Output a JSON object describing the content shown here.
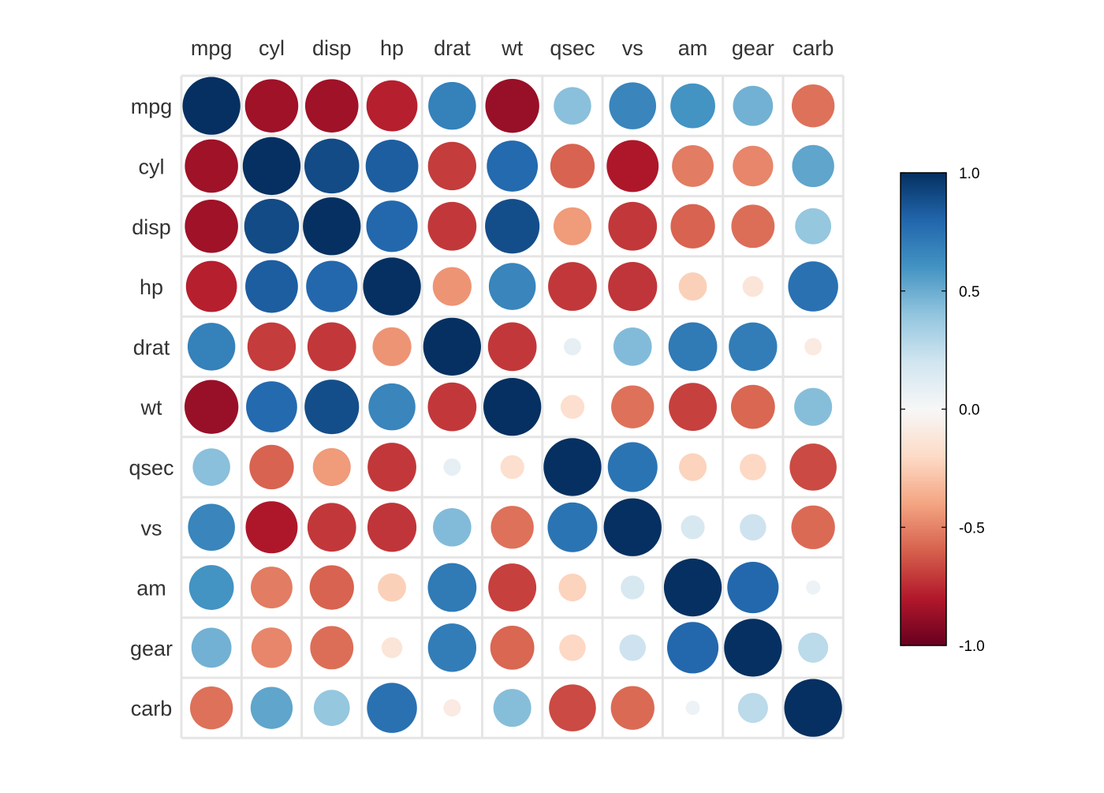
{
  "chart_data": {
    "type": "heatmap",
    "variables": [
      "mpg",
      "cyl",
      "disp",
      "hp",
      "drat",
      "wt",
      "qsec",
      "vs",
      "am",
      "gear",
      "carb"
    ],
    "matrix": [
      [
        1.0,
        -0.85,
        -0.85,
        -0.78,
        0.68,
        -0.87,
        0.42,
        0.66,
        0.6,
        0.48,
        -0.55
      ],
      [
        -0.85,
        1.0,
        0.9,
        0.83,
        -0.7,
        0.78,
        -0.59,
        -0.81,
        -0.52,
        -0.49,
        0.53
      ],
      [
        -0.85,
        0.9,
        1.0,
        0.79,
        -0.71,
        0.89,
        -0.43,
        -0.71,
        -0.59,
        -0.56,
        0.39
      ],
      [
        -0.78,
        0.83,
        0.79,
        1.0,
        -0.45,
        0.66,
        -0.71,
        -0.72,
        -0.24,
        -0.13,
        0.75
      ],
      [
        0.68,
        -0.7,
        -0.71,
        -0.45,
        1.0,
        -0.71,
        0.09,
        0.44,
        0.71,
        0.7,
        -0.09
      ],
      [
        -0.87,
        0.78,
        0.89,
        0.66,
        -0.71,
        1.0,
        -0.17,
        -0.55,
        -0.69,
        -0.58,
        0.43
      ],
      [
        0.42,
        -0.59,
        -0.43,
        -0.71,
        0.09,
        -0.17,
        1.0,
        0.74,
        -0.23,
        -0.21,
        -0.66
      ],
      [
        0.66,
        -0.81,
        -0.71,
        -0.72,
        0.44,
        -0.55,
        0.74,
        1.0,
        0.17,
        0.21,
        -0.57
      ],
      [
        0.6,
        -0.52,
        -0.59,
        -0.24,
        0.71,
        -0.69,
        -0.23,
        0.17,
        1.0,
        0.79,
        0.06
      ],
      [
        0.48,
        -0.49,
        -0.56,
        -0.13,
        0.7,
        -0.58,
        -0.21,
        0.21,
        0.79,
        1.0,
        0.27
      ],
      [
        -0.55,
        0.53,
        0.39,
        0.75,
        -0.09,
        0.43,
        -0.66,
        -0.57,
        0.06,
        0.27,
        1.0
      ]
    ],
    "encoding": "circle",
    "colorbar": {
      "ticks": [
        1.0,
        0.5,
        0.0,
        -0.5,
        -1.0
      ],
      "tick_labels": [
        "1.0",
        "0.5",
        "0.0",
        "-0.5",
        "-1.0"
      ],
      "range": [
        -1.0,
        1.0
      ],
      "colors": [
        "#67001F",
        "#B2182B",
        "#D6604D",
        "#F4A582",
        "#FDDBC7",
        "#F7F7F7",
        "#D1E5F0",
        "#92C5DE",
        "#4393C3",
        "#2166AC",
        "#053061"
      ]
    },
    "grid_color": "#E5E5E5",
    "grid": true,
    "legend": "right"
  }
}
